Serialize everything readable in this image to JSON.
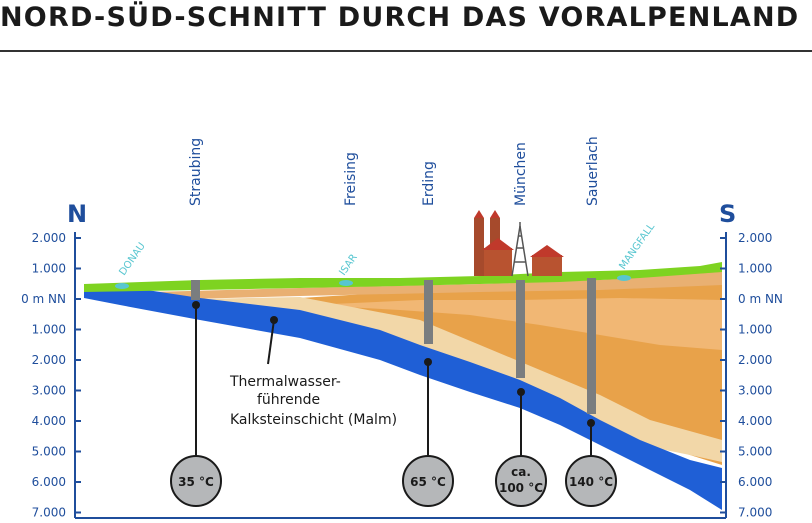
{
  "title": "NORD-SÜD-SCHNITT DURCH DAS VORALPENLAND",
  "directions": {
    "north": "N",
    "south": "S"
  },
  "depth_axis": [
    "2.000",
    "1.000",
    "0 m NN",
    "1.000",
    "2.000",
    "3.000",
    "4.000",
    "5.000",
    "6.000",
    "7.000"
  ],
  "cities": [
    "Straubing",
    "Freising",
    "Erding",
    "München",
    "Sauerlach"
  ],
  "rivers": [
    "DONAU",
    "ISAR",
    "MANGFALL"
  ],
  "annotation": {
    "line1": "Thermalwasser-",
    "line2": "führende",
    "line3": "Kalksteinschicht (Malm)"
  },
  "temperatures": [
    {
      "line1": "35 °C",
      "line2": ""
    },
    {
      "line1": "65 °C",
      "line2": ""
    },
    {
      "line1": "ca.",
      "line2": "100 °C"
    },
    {
      "line1": "140 °C",
      "line2": ""
    }
  ],
  "colors": {
    "water_layer": "#1f5fd6",
    "axis_blue": "#1f4e9c",
    "surface_green": "#7ed321",
    "sediment_dark": "#e29a3c",
    "sediment_light": "#f0cfa0",
    "borehole": "#7a7d7f",
    "river": "#58c6d0"
  }
}
